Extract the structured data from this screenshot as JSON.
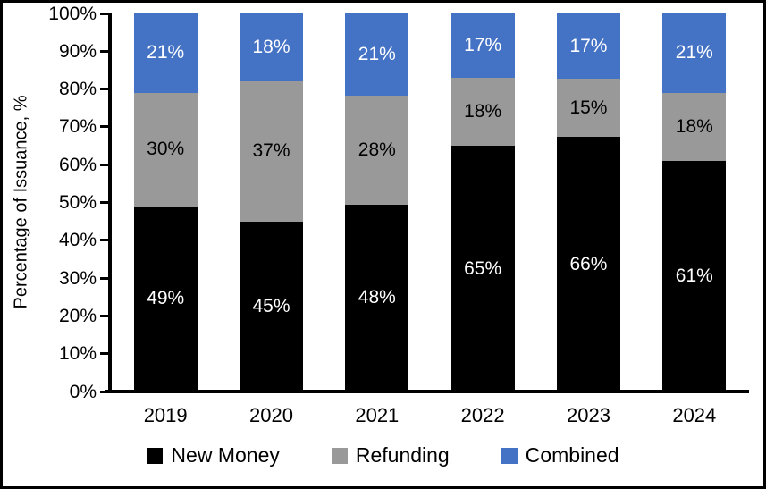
{
  "chart_data": {
    "type": "bar",
    "stacked": true,
    "title": "",
    "categories": [
      "2019",
      "2020",
      "2021",
      "2022",
      "2023",
      "2024"
    ],
    "series": [
      {
        "name": "New Money",
        "color": "#000000",
        "label_color": "#FFFFFF",
        "values": [
          49,
          45,
          48,
          65,
          66,
          61
        ]
      },
      {
        "name": "Refunding",
        "color": "#999999",
        "label_color": "#000000",
        "values": [
          30,
          37,
          28,
          18,
          15,
          18
        ]
      },
      {
        "name": "Combined",
        "color": "#4472C4",
        "label_color": "#FFFFFF",
        "values": [
          21,
          18,
          21,
          17,
          17,
          21
        ]
      }
    ],
    "ylabel": "Percentage of Issuance, %",
    "xlabel": "",
    "ylim": [
      0,
      100
    ],
    "y_ticks": [
      0,
      10,
      20,
      30,
      40,
      50,
      60,
      70,
      80,
      90,
      100
    ],
    "y_tick_suffix": "%",
    "data_label_suffix": "%",
    "grid": false,
    "legend_position": "bottom"
  }
}
